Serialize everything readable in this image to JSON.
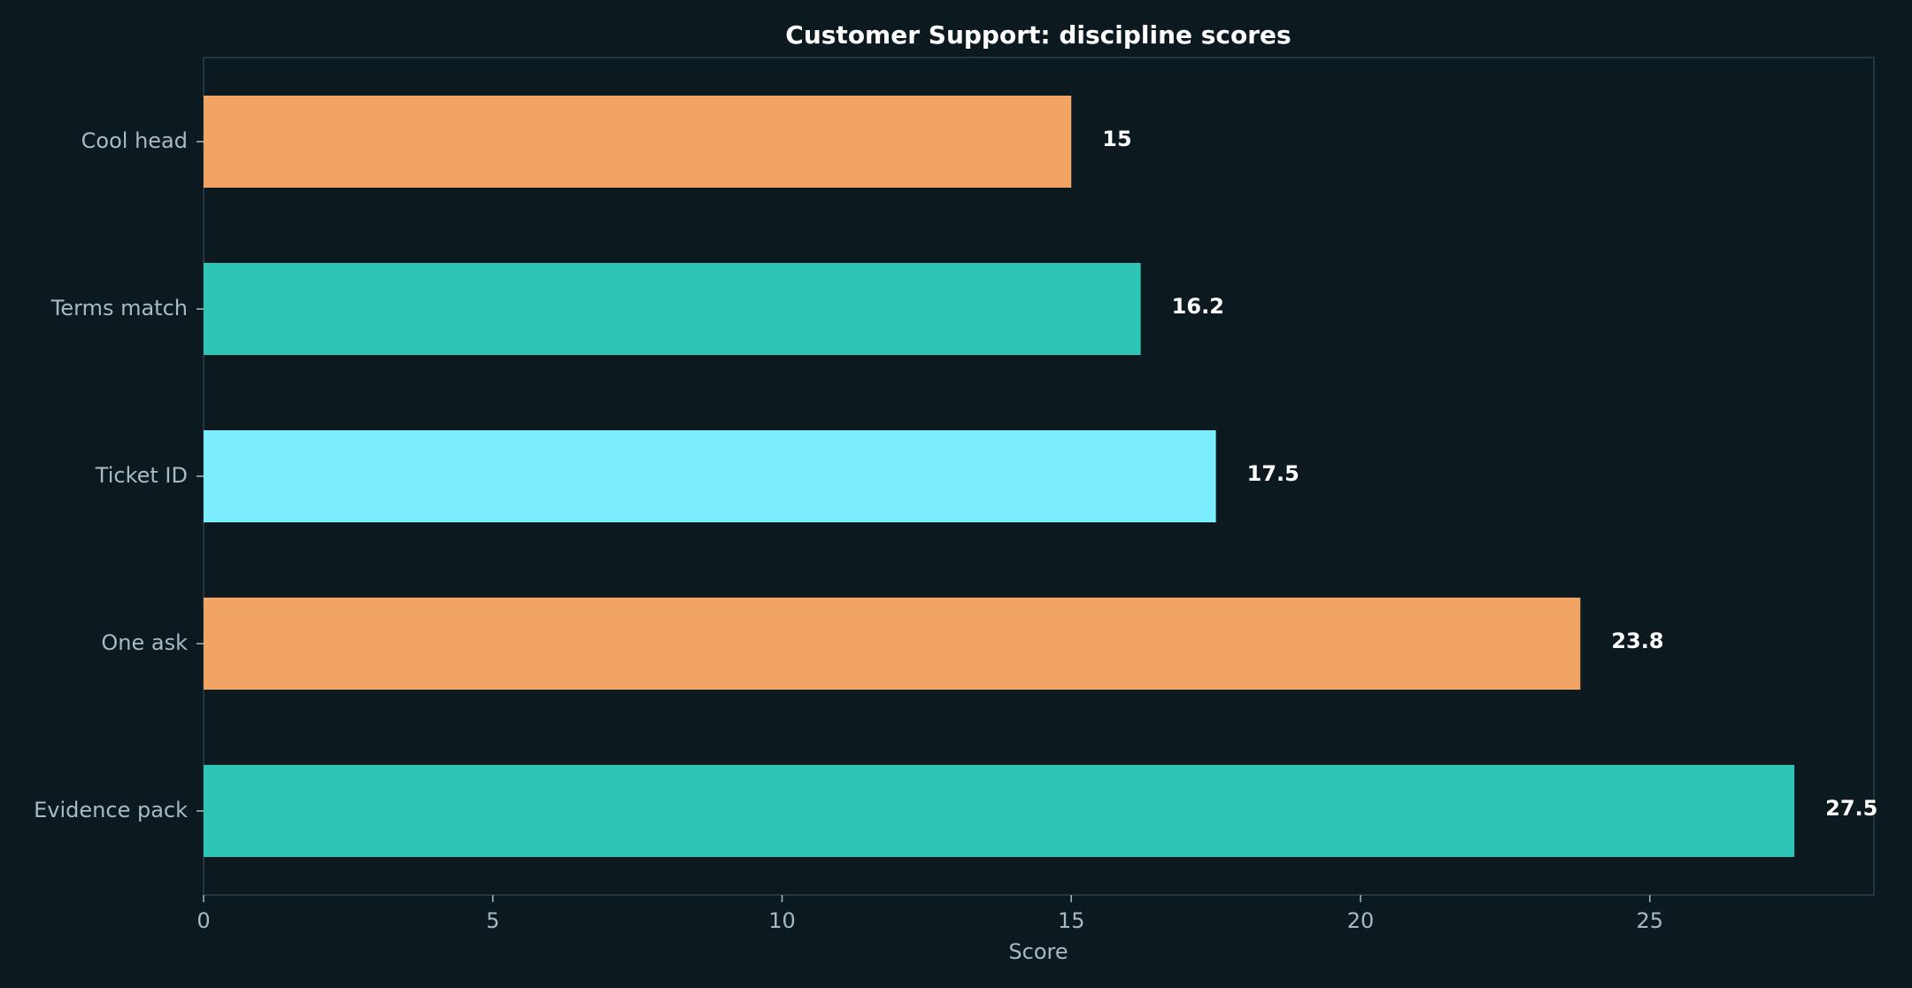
{
  "chart_data": {
    "type": "bar",
    "orientation": "horizontal",
    "title": "Customer Support: discipline scores",
    "xlabel": "Score",
    "ylabel": "",
    "categories": [
      "Cool head",
      "Terms match",
      "Ticket ID",
      "One ask",
      "Evidence pack"
    ],
    "values": [
      15,
      16.2,
      17.5,
      23.8,
      27.5
    ],
    "value_labels": [
      "15",
      "16.2",
      "17.5",
      "23.8",
      "27.5"
    ],
    "colors": [
      "#f2a465",
      "#2ec5b6",
      "#7aedff",
      "#f2a465",
      "#2ec5b6"
    ],
    "xlim": [
      0,
      28.875
    ],
    "xticks": [
      0,
      5,
      10,
      15,
      20,
      25
    ],
    "xtick_labels": [
      "0",
      "5",
      "10",
      "15",
      "20",
      "25"
    ],
    "grid": false,
    "legend": "none"
  },
  "theme": {
    "background": "#0c1a20",
    "frame_color": "#243640",
    "tick_color": "#a9b9c0",
    "title_color": "#ffffff",
    "value_label_color": "#ffffff"
  }
}
